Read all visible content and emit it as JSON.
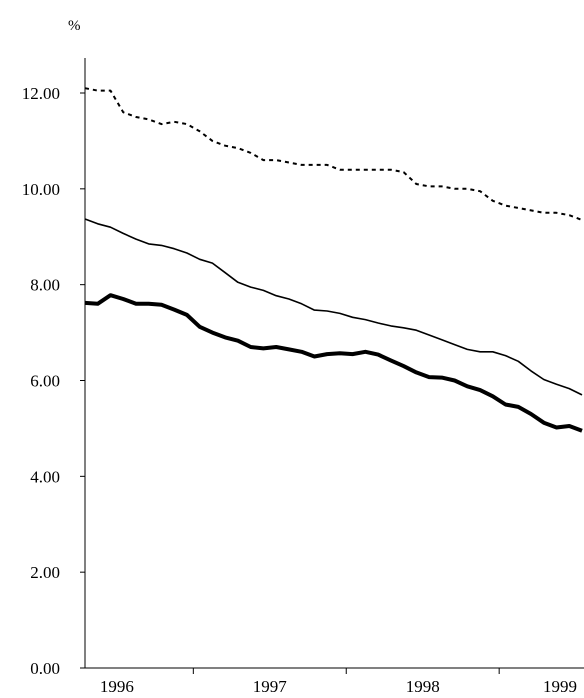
{
  "chart_data": {
    "type": "line",
    "title": "",
    "ylabel": "%",
    "xlabel": "",
    "ylim": [
      0,
      12
    ],
    "yticks": [
      "0.00",
      "2.00",
      "4.00",
      "6.00",
      "8.00",
      "10.00",
      "12.00"
    ],
    "xticks": [
      "1996",
      "1997",
      "1998",
      "1999"
    ],
    "x_period_count": 40,
    "grid": false,
    "legend": "none",
    "series": [
      {
        "style": "dotted",
        "color": "#000000",
        "values": [
          12.1,
          12.05,
          12.05,
          11.6,
          11.5,
          11.45,
          11.35,
          11.4,
          11.35,
          11.2,
          11.0,
          10.9,
          10.85,
          10.75,
          10.6,
          10.6,
          10.55,
          10.5,
          10.5,
          10.5,
          10.4,
          10.4,
          10.4,
          10.4,
          10.4,
          10.35,
          10.1,
          10.05,
          10.05,
          10.0,
          10.0,
          9.95,
          9.75,
          9.65,
          9.6,
          9.55,
          9.5,
          9.5,
          9.45,
          9.35
        ]
      },
      {
        "style": "solid-thin",
        "color": "#000000",
        "values": [
          9.37,
          9.27,
          9.2,
          9.07,
          8.95,
          8.85,
          8.82,
          8.75,
          8.66,
          8.53,
          8.45,
          8.25,
          8.05,
          7.95,
          7.88,
          7.77,
          7.7,
          7.6,
          7.47,
          7.45,
          7.4,
          7.32,
          7.27,
          7.2,
          7.14,
          7.1,
          7.05,
          6.95,
          6.85,
          6.75,
          6.65,
          6.6,
          6.6,
          6.52,
          6.4,
          6.2,
          6.02,
          5.92,
          5.83,
          5.7
        ]
      },
      {
        "style": "solid-thick",
        "color": "#000000",
        "values": [
          7.62,
          7.6,
          7.78,
          7.7,
          7.6,
          7.6,
          7.58,
          7.48,
          7.37,
          7.12,
          7.0,
          6.9,
          6.83,
          6.7,
          6.67,
          6.7,
          6.65,
          6.6,
          6.5,
          6.55,
          6.57,
          6.55,
          6.6,
          6.54,
          6.42,
          6.3,
          6.17,
          6.07,
          6.06,
          6.0,
          5.88,
          5.8,
          5.67,
          5.5,
          5.45,
          5.3,
          5.12,
          5.02,
          5.05,
          4.95
        ]
      }
    ]
  }
}
